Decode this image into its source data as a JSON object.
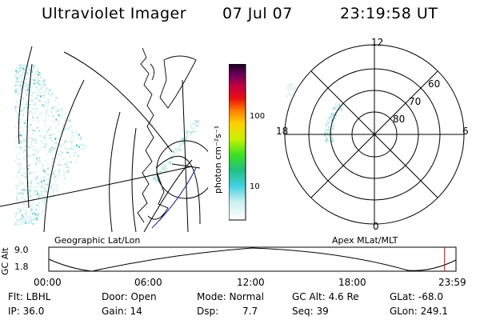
{
  "header": {
    "instrument": "Ultraviolet Imager",
    "date": "07 Jul 07",
    "time": "23:19:58 UT"
  },
  "colorbar": {
    "unit": "photon cm⁻²s⁻¹",
    "ticks": [
      "100",
      "10"
    ]
  },
  "polar": {
    "ring_labels": [
      "60",
      "70",
      "80"
    ],
    "clock_labels": [
      "12",
      "18",
      "6",
      "0"
    ]
  },
  "panel_labels": {
    "geographic": "Geographic Lat/Lon",
    "apex": "Apex MLat/MLT"
  },
  "orbit": {
    "ylabel": "GC Alt",
    "yticks": [
      "9.0",
      "1.8"
    ],
    "xticks": [
      "00:00",
      "06:00",
      "12:00",
      "18:00",
      "23:59"
    ],
    "current_time_fraction": 0.972
  },
  "status": {
    "filter": "Flt: LBHL",
    "ip": "IP: 36.0",
    "door": "Door: Open",
    "gain": "Gain: 14",
    "mode": "Mode: Normal",
    "dsp_label": "Dsp:",
    "dsp_value": "7.7",
    "gc_alt": "GC Alt: 4.6 Re",
    "seq": "Seq: 39",
    "glat": "GLat: -68.0",
    "glon": "GLon: 249.1"
  },
  "colors": {
    "aurora_faint": "#d8f0f2",
    "aurora_mid": "#9fdde2",
    "aurora_bright": "#3cc8d4",
    "coast": "#000000",
    "marker": "#cc0000"
  }
}
